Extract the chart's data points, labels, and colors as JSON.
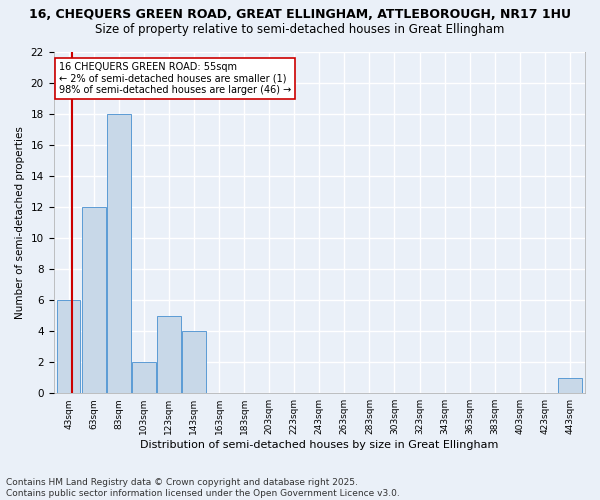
{
  "title1": "16, CHEQUERS GREEN ROAD, GREAT ELLINGHAM, ATTLEBOROUGH, NR17 1HU",
  "title2": "Size of property relative to semi-detached houses in Great Ellingham",
  "xlabel": "Distribution of semi-detached houses by size in Great Ellingham",
  "ylabel": "Number of semi-detached properties",
  "bins": [
    "43sqm",
    "63sqm",
    "83sqm",
    "103sqm",
    "123sqm",
    "143sqm",
    "163sqm",
    "183sqm",
    "203sqm",
    "223sqm",
    "243sqm",
    "263sqm",
    "283sqm",
    "303sqm",
    "323sqm",
    "343sqm",
    "363sqm",
    "383sqm",
    "403sqm",
    "423sqm",
    "443sqm"
  ],
  "values": [
    6,
    12,
    18,
    2,
    5,
    4,
    0,
    0,
    0,
    0,
    0,
    0,
    0,
    0,
    0,
    0,
    0,
    0,
    0,
    0,
    1
  ],
  "bar_color": "#c8d8e8",
  "bar_edgecolor": "#5b9bd5",
  "subject_line_color": "#cc0000",
  "annotation_text": "16 CHEQUERS GREEN ROAD: 55sqm\n← 2% of semi-detached houses are smaller (1)\n98% of semi-detached houses are larger (46) →",
  "annotation_box_color": "#ffffff",
  "annotation_box_edgecolor": "#cc0000",
  "ylim": [
    0,
    22
  ],
  "yticks": [
    0,
    2,
    4,
    6,
    8,
    10,
    12,
    14,
    16,
    18,
    20,
    22
  ],
  "footer": "Contains HM Land Registry data © Crown copyright and database right 2025.\nContains public sector information licensed under the Open Government Licence v3.0.",
  "background_color": "#eaf0f8",
  "plot_background_color": "#eaf0f8",
  "grid_color": "#ffffff",
  "title1_fontsize": 9,
  "title2_fontsize": 8.5,
  "footer_fontsize": 6.5
}
